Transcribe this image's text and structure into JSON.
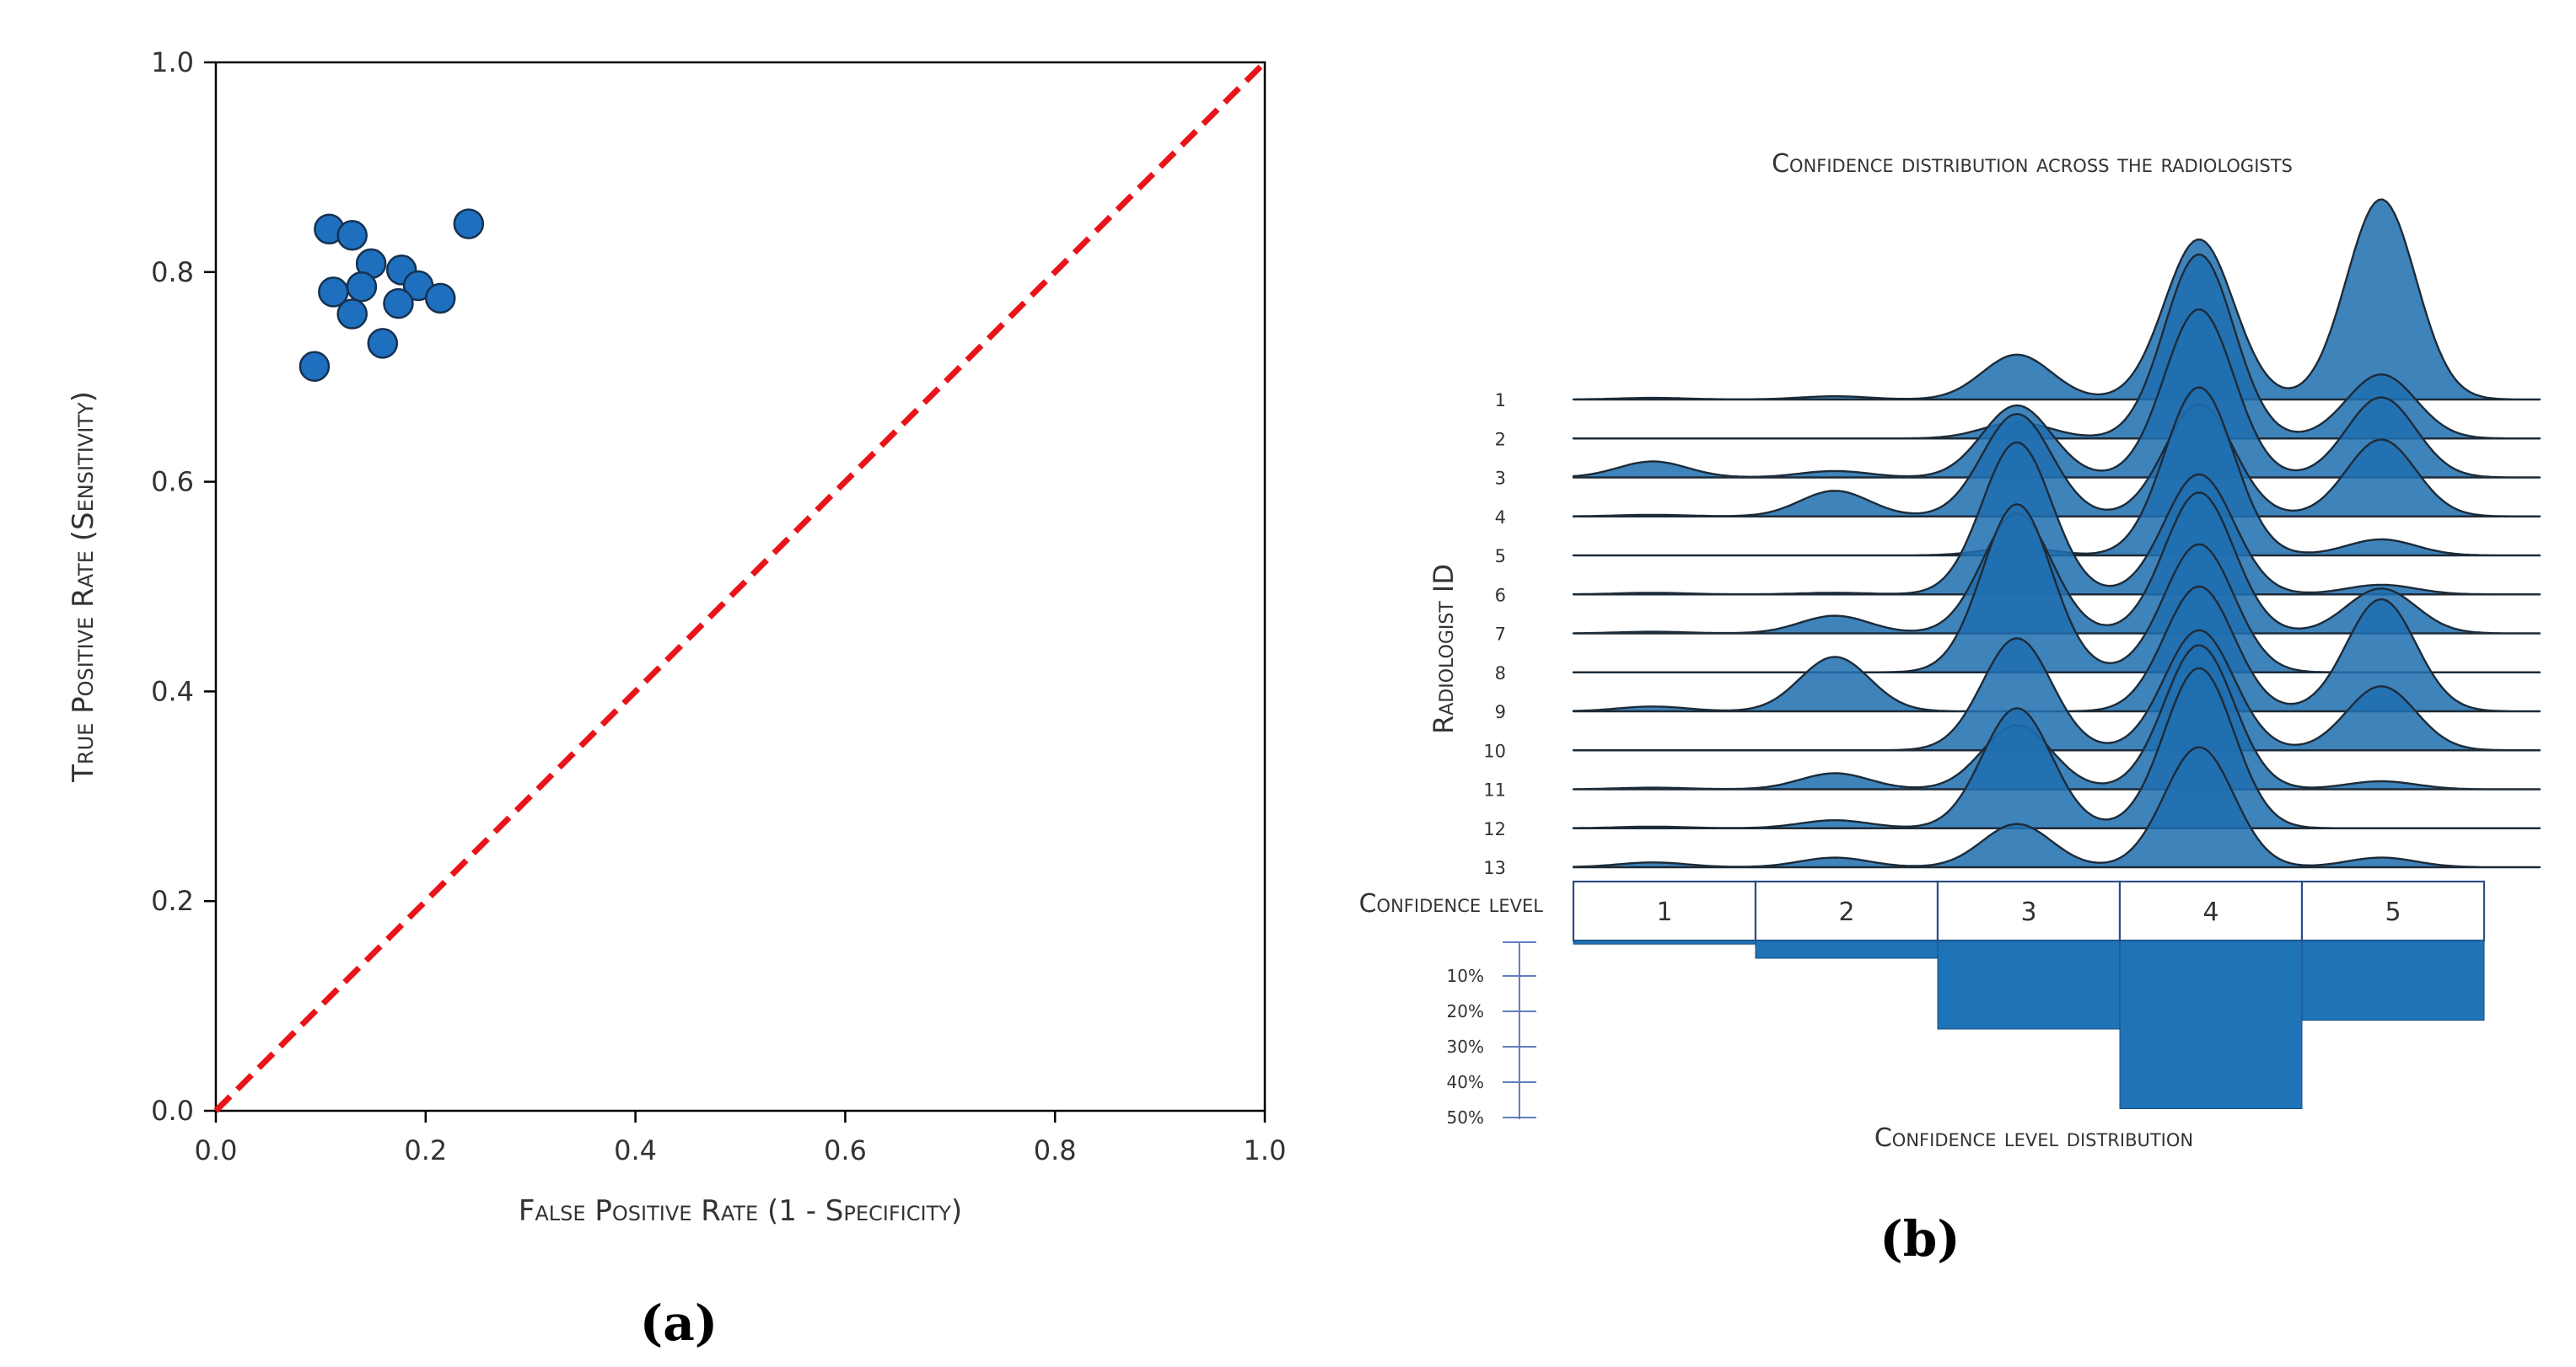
{
  "chart_data": [
    {
      "type": "scatter",
      "panel_label": "(a)",
      "title": "",
      "xlabel": "False Positive Rate (1 - Specificity)",
      "ylabel": "True Positive Rate (Sensitivity)",
      "xlim": [
        0.0,
        1.0
      ],
      "ylim": [
        0.0,
        1.0
      ],
      "xticks": [
        "0.0",
        "0.2",
        "0.4",
        "0.6",
        "0.8",
        "1.0"
      ],
      "yticks": [
        "0.0",
        "0.2",
        "0.4",
        "0.6",
        "0.8",
        "1.0"
      ],
      "grid": false,
      "reference_line": {
        "from": [
          0,
          0
        ],
        "to": [
          1,
          1
        ],
        "style": "dashed",
        "color": "#e8141a"
      },
      "point_color": "#1f6fbf",
      "points": [
        {
          "x": 0.108,
          "y": 0.841
        },
        {
          "x": 0.13,
          "y": 0.835
        },
        {
          "x": 0.241,
          "y": 0.846
        },
        {
          "x": 0.148,
          "y": 0.808
        },
        {
          "x": 0.177,
          "y": 0.802
        },
        {
          "x": 0.193,
          "y": 0.787
        },
        {
          "x": 0.139,
          "y": 0.786
        },
        {
          "x": 0.112,
          "y": 0.781
        },
        {
          "x": 0.214,
          "y": 0.775
        },
        {
          "x": 0.174,
          "y": 0.77
        },
        {
          "x": 0.13,
          "y": 0.76
        },
        {
          "x": 0.159,
          "y": 0.732
        },
        {
          "x": 0.094,
          "y": 0.71
        }
      ]
    },
    {
      "type": "area",
      "subtype": "ridgeline",
      "panel_label": "(b)",
      "title": "Confidence distribution across the radiologists",
      "ylabel": "Radiologist ID",
      "xlabel": "Confidence level",
      "categories": [
        "1",
        "2",
        "3",
        "4",
        "5"
      ],
      "color": "#1f6fb0",
      "series": [
        {
          "name": "1",
          "peaks": [
            0.01,
            0.02,
            0.28,
            1.0,
            1.25
          ]
        },
        {
          "name": "2",
          "peaks": [
            0.0,
            0.0,
            0.1,
            1.15,
            0.4
          ]
        },
        {
          "name": "3",
          "peaks": [
            0.1,
            0.04,
            0.45,
            1.05,
            0.5
          ]
        },
        {
          "name": "4",
          "peaks": [
            0.01,
            0.16,
            0.64,
            0.7,
            0.48
          ]
        },
        {
          "name": "5",
          "peaks": [
            0.0,
            0.0,
            0.05,
            1.05,
            0.1
          ]
        },
        {
          "name": "6",
          "peaks": [
            0.01,
            0.01,
            0.95,
            0.75,
            0.06
          ]
        },
        {
          "name": "7",
          "peaks": [
            0.01,
            0.11,
            0.75,
            0.88,
            0.28
          ]
        },
        {
          "name": "8",
          "peaks": [
            0.0,
            0.0,
            1.05,
            0.8,
            0.0
          ]
        },
        {
          "name": "9",
          "peaks": [
            0.03,
            0.34,
            0.0,
            0.78,
            0.7
          ]
        },
        {
          "name": "10",
          "peaks": [
            0.0,
            0.0,
            0.7,
            0.75,
            0.4
          ]
        },
        {
          "name": "11",
          "peaks": [
            0.01,
            0.1,
            0.4,
            0.9,
            0.05
          ]
        },
        {
          "name": "12",
          "peaks": [
            0.01,
            0.05,
            0.75,
            1.0,
            0.0
          ]
        },
        {
          "name": "13",
          "peaks": [
            0.03,
            0.06,
            0.27,
            0.75,
            0.06
          ]
        }
      ],
      "distribution": {
        "label": "Confidence level distribution",
        "tick_labels": [
          "10%",
          "20%",
          "30%",
          "40%",
          "50%"
        ],
        "percent_range": [
          0,
          50
        ],
        "values": [
          1.0,
          5.0,
          25.0,
          47.5,
          22.5
        ]
      }
    }
  ]
}
